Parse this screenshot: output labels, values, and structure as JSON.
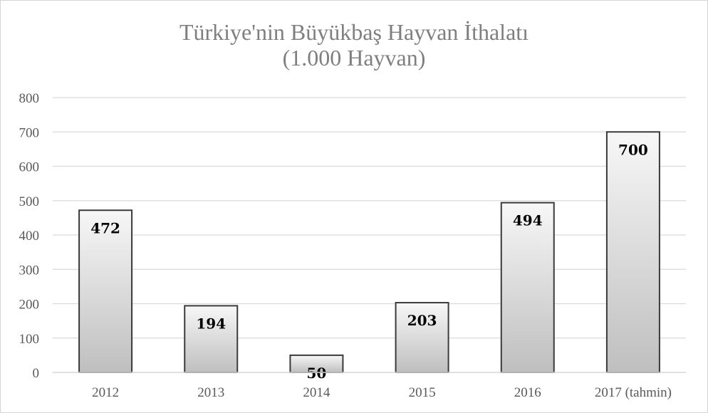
{
  "chart_data": {
    "type": "bar",
    "title": "Türkiye'nin Büyükbaş Hayvan İthalatı",
    "subtitle": "(1.000 Hayvan)",
    "categories": [
      "2012",
      "2013",
      "2014",
      "2015",
      "2016",
      "2017 (tahmin)"
    ],
    "values": [
      472,
      194,
      50,
      203,
      494,
      700
    ],
    "data_labels": [
      "472",
      "194",
      "50",
      "203",
      "494",
      "700"
    ],
    "ylim": [
      0,
      800
    ],
    "yticks": [
      "0",
      "100",
      "200",
      "300",
      "400",
      "500",
      "600",
      "700",
      "800"
    ],
    "grid": true,
    "legend": "none",
    "colors": {
      "bar_top": "#f7f7f7",
      "bar_bottom": "#bfbfbf",
      "bar_border": "#3a3a3a",
      "grid": "#d9d9d9",
      "title": "#7f7f7f"
    }
  }
}
